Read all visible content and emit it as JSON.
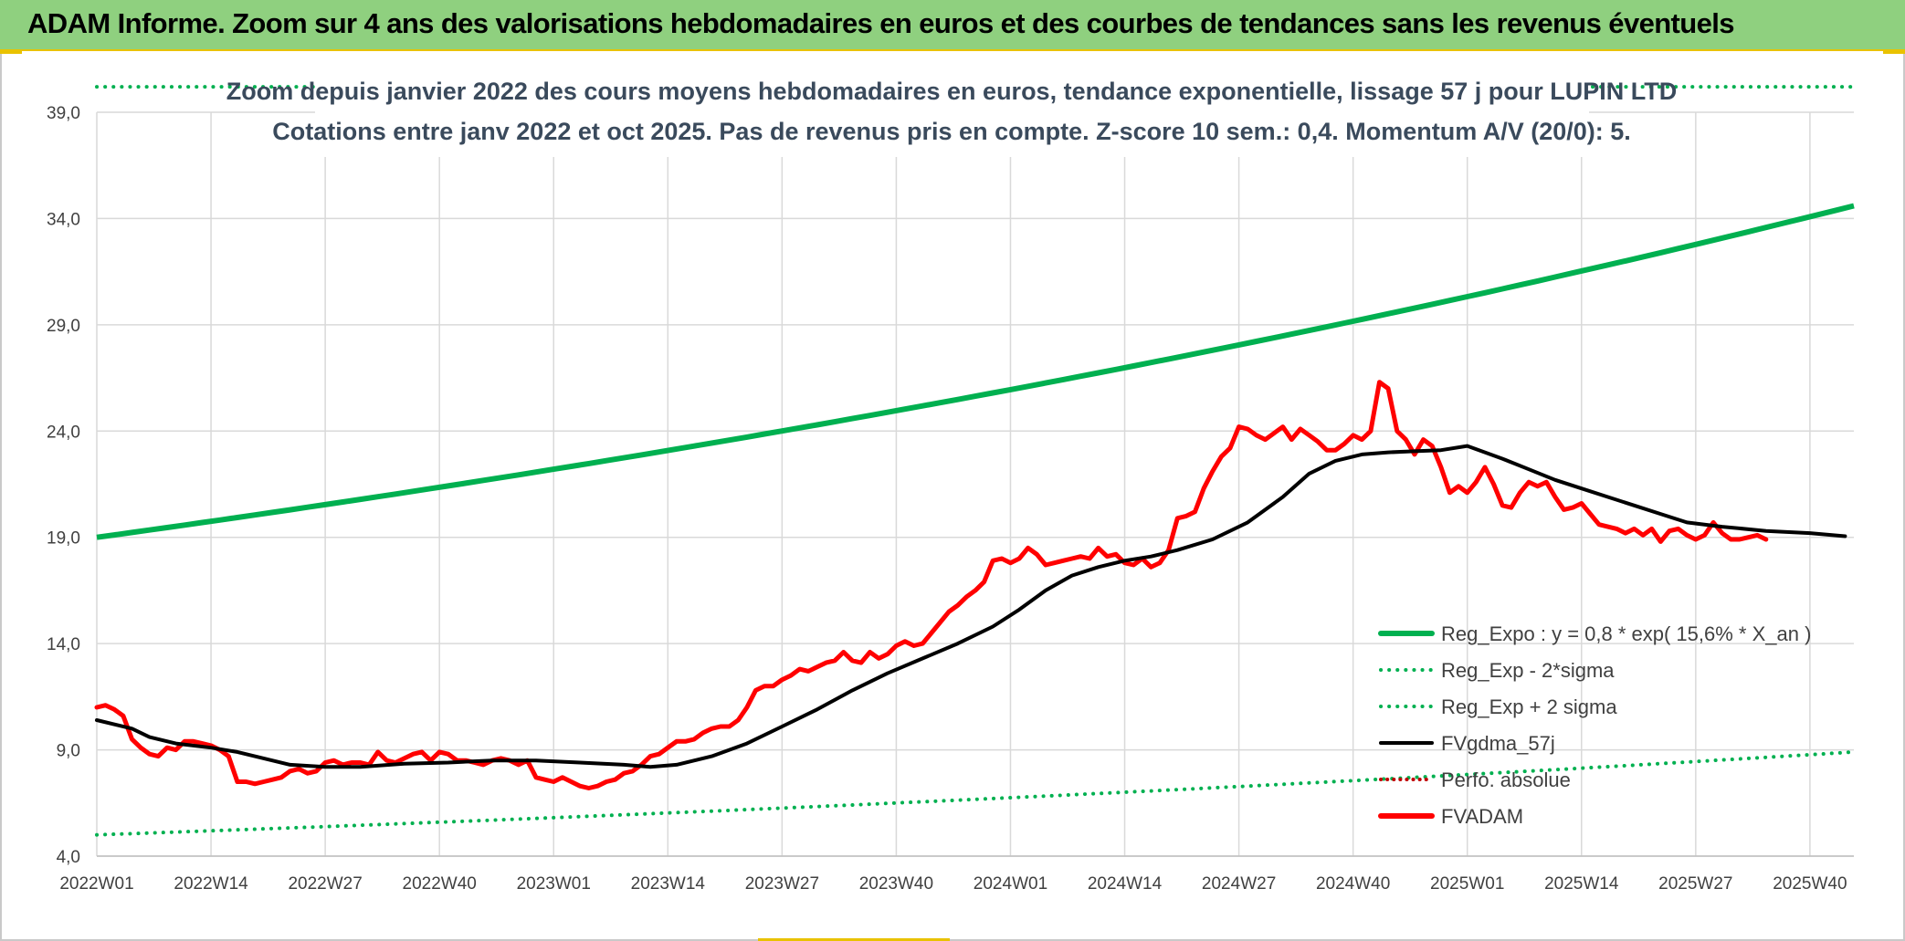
{
  "banner": {
    "title": "ADAM Informe. Zoom sur 4 ans des valorisations hebdomadaires en euros et des courbes de tendances sans les revenus éventuels"
  },
  "colors": {
    "banner_bg": "#8fd07f",
    "accent": "#e9c200",
    "reg_expo": "#00b050",
    "fvgdma": "#000000",
    "fvadam": "#ff0000",
    "perfo": "#c00000",
    "grid": "#d9d9d9"
  },
  "chart_data": {
    "type": "line",
    "title": "Zoom depuis janvier 2022 des cours moyens hebdomadaires en euros, tendance exponentielle, lissage 57 j pour LUPIN LTD",
    "subtitle": "Cotations entre janv 2022 et oct 2025. Pas de revenus pris en compte. Z-score 10 sem.: 0,4. Momentum A/V (20/0): 5.",
    "xlabel": "",
    "ylabel": "",
    "x_range": [
      0,
      200
    ],
    "ylim": [
      4.0,
      39.0
    ],
    "y_ticks": [
      "4,0",
      "9,0",
      "14,0",
      "19,0",
      "24,0",
      "29,0",
      "34,0",
      "39,0"
    ],
    "y_tick_values": [
      4,
      9,
      14,
      19,
      24,
      29,
      34,
      39
    ],
    "x_tick_labels": [
      "2022W01",
      "2022W14",
      "2022W27",
      "2022W40",
      "2023W01",
      "2023W14",
      "2023W27",
      "2023W40",
      "2024W01",
      "2024W14",
      "2024W27",
      "2024W40",
      "2025W01",
      "2025W14",
      "2025W27",
      "2025W40"
    ],
    "x_tick_positions": [
      0,
      13,
      26,
      39,
      52,
      65,
      78,
      91,
      104,
      117,
      130,
      143,
      156,
      169,
      182,
      195
    ],
    "grid": true,
    "legend_position": "right",
    "series": [
      {
        "name": "Reg_Expo : y = 0,8 * exp( 15,6% *  X_an )",
        "style": "solid",
        "x": [
          0,
          200
        ],
        "y_expo_start": 19.0,
        "y_expo_end": 34.6
      },
      {
        "name": "Reg_Exp - 2*sigma",
        "style": "dotted",
        "x": [
          0,
          200
        ],
        "y_expo_start": 5.0,
        "y_expo_end": 8.9
      },
      {
        "name": "Reg_Exp + 2 sigma",
        "style": "dotted",
        "x": [
          0,
          200
        ],
        "y_expo_start": 40.2,
        "y_expo_end": 40.2
      },
      {
        "name": "FVgdma_57j",
        "style": "solid",
        "points": [
          [
            0,
            10.4
          ],
          [
            4,
            10.0
          ],
          [
            6,
            9.6
          ],
          [
            9,
            9.3
          ],
          [
            13,
            9.1
          ],
          [
            16,
            8.9
          ],
          [
            19,
            8.6
          ],
          [
            22,
            8.3
          ],
          [
            26,
            8.2
          ],
          [
            30,
            8.2
          ],
          [
            35,
            8.35
          ],
          [
            40,
            8.4
          ],
          [
            45,
            8.5
          ],
          [
            50,
            8.5
          ],
          [
            55,
            8.4
          ],
          [
            60,
            8.3
          ],
          [
            63,
            8.2
          ],
          [
            66,
            8.3
          ],
          [
            70,
            8.7
          ],
          [
            74,
            9.3
          ],
          [
            78,
            10.1
          ],
          [
            82,
            10.9
          ],
          [
            86,
            11.8
          ],
          [
            90,
            12.6
          ],
          [
            94,
            13.3
          ],
          [
            98,
            14.0
          ],
          [
            102,
            14.8
          ],
          [
            105,
            15.6
          ],
          [
            108,
            16.5
          ],
          [
            111,
            17.2
          ],
          [
            114,
            17.6
          ],
          [
            117,
            17.9
          ],
          [
            120,
            18.1
          ],
          [
            123,
            18.4
          ],
          [
            127,
            18.9
          ],
          [
            131,
            19.7
          ],
          [
            135,
            20.9
          ],
          [
            138,
            22.0
          ],
          [
            141,
            22.6
          ],
          [
            144,
            22.9
          ],
          [
            147,
            23.0
          ],
          [
            150,
            23.05
          ],
          [
            153,
            23.1
          ],
          [
            156,
            23.3
          ],
          [
            158,
            23.0
          ],
          [
            160,
            22.7
          ],
          [
            163,
            22.2
          ],
          [
            166,
            21.7
          ],
          [
            169,
            21.3
          ],
          [
            172,
            20.9
          ],
          [
            175,
            20.5
          ],
          [
            178,
            20.1
          ],
          [
            181,
            19.7
          ],
          [
            185,
            19.5
          ],
          [
            190,
            19.3
          ],
          [
            195,
            19.2
          ],
          [
            199,
            19.05
          ]
        ]
      },
      {
        "name": "Perfo. absolue",
        "style": "dotted",
        "points": []
      },
      {
        "name": "FVADAM",
        "style": "solid",
        "points": [
          [
            0,
            11.0
          ],
          [
            1,
            11.1
          ],
          [
            2,
            10.9
          ],
          [
            3,
            10.6
          ],
          [
            4,
            9.5
          ],
          [
            5,
            9.1
          ],
          [
            6,
            8.8
          ],
          [
            7,
            8.7
          ],
          [
            8,
            9.1
          ],
          [
            9,
            9.0
          ],
          [
            10,
            9.4
          ],
          [
            11,
            9.4
          ],
          [
            12,
            9.3
          ],
          [
            13,
            9.2
          ],
          [
            14,
            9.0
          ],
          [
            15,
            8.7
          ],
          [
            16,
            7.5
          ],
          [
            17,
            7.5
          ],
          [
            18,
            7.4
          ],
          [
            19,
            7.5
          ],
          [
            20,
            7.6
          ],
          [
            21,
            7.7
          ],
          [
            22,
            8.0
          ],
          [
            23,
            8.1
          ],
          [
            24,
            7.9
          ],
          [
            25,
            8.0
          ],
          [
            26,
            8.4
          ],
          [
            27,
            8.5
          ],
          [
            28,
            8.3
          ],
          [
            29,
            8.4
          ],
          [
            30,
            8.4
          ],
          [
            31,
            8.3
          ],
          [
            32,
            8.9
          ],
          [
            33,
            8.5
          ],
          [
            34,
            8.4
          ],
          [
            35,
            8.6
          ],
          [
            36,
            8.8
          ],
          [
            37,
            8.9
          ],
          [
            38,
            8.5
          ],
          [
            39,
            8.9
          ],
          [
            40,
            8.8
          ],
          [
            41,
            8.5
          ],
          [
            42,
            8.5
          ],
          [
            43,
            8.4
          ],
          [
            44,
            8.3
          ],
          [
            45,
            8.5
          ],
          [
            46,
            8.6
          ],
          [
            47,
            8.5
          ],
          [
            48,
            8.3
          ],
          [
            49,
            8.5
          ],
          [
            50,
            7.7
          ],
          [
            51,
            7.6
          ],
          [
            52,
            7.5
          ],
          [
            53,
            7.7
          ],
          [
            54,
            7.5
          ],
          [
            55,
            7.3
          ],
          [
            56,
            7.2
          ],
          [
            57,
            7.3
          ],
          [
            58,
            7.5
          ],
          [
            59,
            7.6
          ],
          [
            60,
            7.9
          ],
          [
            61,
            8.0
          ],
          [
            62,
            8.3
          ],
          [
            63,
            8.7
          ],
          [
            64,
            8.8
          ],
          [
            65,
            9.1
          ],
          [
            66,
            9.4
          ],
          [
            67,
            9.4
          ],
          [
            68,
            9.5
          ],
          [
            69,
            9.8
          ],
          [
            70,
            10.0
          ],
          [
            71,
            10.1
          ],
          [
            72,
            10.1
          ],
          [
            73,
            10.4
          ],
          [
            74,
            11.0
          ],
          [
            75,
            11.8
          ],
          [
            76,
            12.0
          ],
          [
            77,
            12.0
          ],
          [
            78,
            12.3
          ],
          [
            79,
            12.5
          ],
          [
            80,
            12.8
          ],
          [
            81,
            12.7
          ],
          [
            82,
            12.9
          ],
          [
            83,
            13.1
          ],
          [
            84,
            13.2
          ],
          [
            85,
            13.6
          ],
          [
            86,
            13.2
          ],
          [
            87,
            13.1
          ],
          [
            88,
            13.6
          ],
          [
            89,
            13.3
          ],
          [
            90,
            13.5
          ],
          [
            91,
            13.9
          ],
          [
            92,
            14.1
          ],
          [
            93,
            13.9
          ],
          [
            94,
            14.0
          ],
          [
            95,
            14.5
          ],
          [
            96,
            15.0
          ],
          [
            97,
            15.5
          ],
          [
            98,
            15.8
          ],
          [
            99,
            16.2
          ],
          [
            100,
            16.5
          ],
          [
            101,
            16.9
          ],
          [
            102,
            17.9
          ],
          [
            103,
            18.0
          ],
          [
            104,
            17.8
          ],
          [
            105,
            18.0
          ],
          [
            106,
            18.5
          ],
          [
            107,
            18.2
          ],
          [
            108,
            17.7
          ],
          [
            109,
            17.8
          ],
          [
            110,
            17.9
          ],
          [
            111,
            18.0
          ],
          [
            112,
            18.1
          ],
          [
            113,
            18.0
          ],
          [
            114,
            18.5
          ],
          [
            115,
            18.1
          ],
          [
            116,
            18.2
          ],
          [
            117,
            17.8
          ],
          [
            118,
            17.7
          ],
          [
            119,
            18.0
          ],
          [
            120,
            17.6
          ],
          [
            121,
            17.8
          ],
          [
            122,
            18.4
          ],
          [
            123,
            19.9
          ],
          [
            124,
            20.0
          ],
          [
            125,
            20.2
          ],
          [
            126,
            21.3
          ],
          [
            127,
            22.1
          ],
          [
            128,
            22.8
          ],
          [
            129,
            23.2
          ],
          [
            130,
            24.2
          ],
          [
            131,
            24.1
          ],
          [
            132,
            23.8
          ],
          [
            133,
            23.6
          ],
          [
            134,
            23.9
          ],
          [
            135,
            24.2
          ],
          [
            136,
            23.6
          ],
          [
            137,
            24.1
          ],
          [
            138,
            23.8
          ],
          [
            139,
            23.5
          ],
          [
            140,
            23.1
          ],
          [
            141,
            23.1
          ],
          [
            142,
            23.4
          ],
          [
            143,
            23.8
          ],
          [
            144,
            23.6
          ],
          [
            145,
            24.0
          ],
          [
            146,
            26.3
          ],
          [
            147,
            26.0
          ],
          [
            148,
            24.0
          ],
          [
            149,
            23.6
          ],
          [
            150,
            22.9
          ],
          [
            151,
            23.6
          ],
          [
            152,
            23.3
          ],
          [
            153,
            22.3
          ],
          [
            154,
            21.1
          ],
          [
            155,
            21.4
          ],
          [
            156,
            21.1
          ],
          [
            157,
            21.6
          ],
          [
            158,
            22.3
          ],
          [
            159,
            21.5
          ],
          [
            160,
            20.5
          ],
          [
            161,
            20.4
          ],
          [
            162,
            21.1
          ],
          [
            163,
            21.6
          ],
          [
            164,
            21.4
          ],
          [
            165,
            21.6
          ],
          [
            166,
            20.9
          ],
          [
            167,
            20.3
          ],
          [
            168,
            20.4
          ],
          [
            169,
            20.6
          ],
          [
            170,
            20.1
          ],
          [
            171,
            19.6
          ],
          [
            172,
            19.5
          ],
          [
            173,
            19.4
          ],
          [
            174,
            19.2
          ],
          [
            175,
            19.4
          ],
          [
            176,
            19.1
          ],
          [
            177,
            19.4
          ],
          [
            178,
            18.8
          ],
          [
            179,
            19.3
          ],
          [
            180,
            19.4
          ],
          [
            181,
            19.1
          ],
          [
            182,
            18.9
          ],
          [
            183,
            19.1
          ],
          [
            184,
            19.7
          ],
          [
            185,
            19.2
          ],
          [
            186,
            18.9
          ],
          [
            187,
            18.9
          ],
          [
            188,
            19.0
          ],
          [
            189,
            19.1
          ],
          [
            190,
            18.9
          ]
        ]
      }
    ]
  }
}
